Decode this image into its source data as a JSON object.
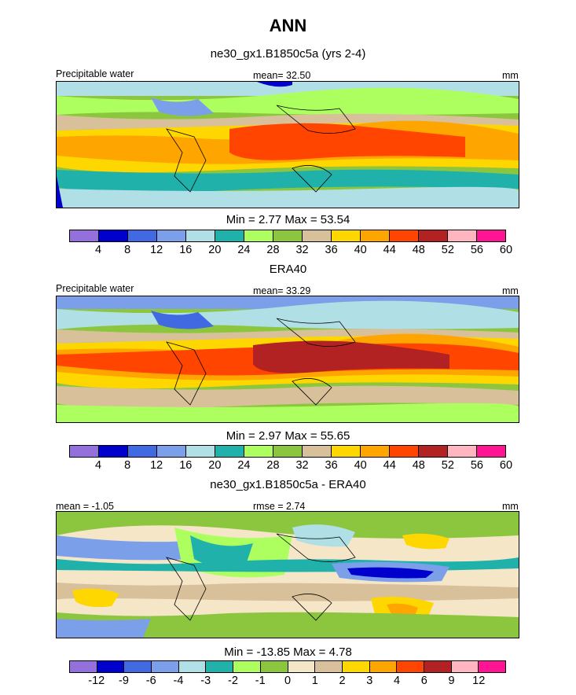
{
  "title": "ANN",
  "panels": [
    {
      "title": "ne30_gx1.B1850c5a (yrs 2-4)",
      "left_label": "Precipitable water",
      "center_label": "mean=  32.50",
      "units": "mm",
      "stats": "Min =   2.77 Max =  53.54",
      "colorbar": "abs"
    },
    {
      "title": "ERA40",
      "left_label": "Precipitable water",
      "center_label": "mean=  33.29",
      "units": "mm",
      "stats": "Min =   2.97 Max =  55.65",
      "colorbar": "abs"
    },
    {
      "title": "ne30_gx1.B1850c5a - ERA40",
      "left_label": "mean =  -1.05",
      "center_label": "rmse =   2.74",
      "units": "mm",
      "stats": "Min = -13.85 Max =   4.78",
      "colorbar": "diff"
    }
  ],
  "colorbars": {
    "abs": {
      "colors": [
        "#9370db",
        "#0000cd",
        "#4169e1",
        "#7b9fe8",
        "#b0e0e6",
        "#20b2aa",
        "#adff5f",
        "#8cc63f",
        "#d8c09a",
        "#ffd700",
        "#ffa500",
        "#ff4500",
        "#b22222",
        "#ffb6c1",
        "#ff1493"
      ],
      "labels": [
        "4",
        "8",
        "12",
        "16",
        "20",
        "24",
        "28",
        "32",
        "36",
        "40",
        "44",
        "48",
        "52",
        "56",
        "60"
      ]
    },
    "diff": {
      "colors": [
        "#9370db",
        "#0000cd",
        "#4169e1",
        "#7b9fe8",
        "#b0e0e6",
        "#20b2aa",
        "#adff5f",
        "#8cc63f",
        "#f5e6c8",
        "#d8c09a",
        "#ffd700",
        "#ffa500",
        "#ff4500",
        "#b22222",
        "#ffb6c1",
        "#ff1493"
      ],
      "labels": [
        "-12",
        "-9",
        "-6",
        "-4",
        "-3",
        "-2",
        "-1",
        "0",
        "1",
        "2",
        "3",
        "4",
        "6",
        "9",
        "12"
      ]
    }
  }
}
